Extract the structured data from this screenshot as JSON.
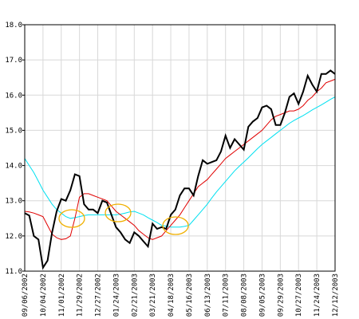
{
  "chart_data": {
    "type": "line",
    "categories": [
      "09/06/2002",
      null,
      null,
      null,
      "10/04/2002",
      null,
      null,
      null,
      "11/01/2002",
      null,
      null,
      null,
      "11/29/2002",
      null,
      null,
      null,
      "12/27/2002",
      null,
      null,
      null,
      "01/24/2003",
      null,
      null,
      null,
      "02/21/2003",
      null,
      null,
      null,
      "03/21/2003",
      null,
      null,
      null,
      "04/18/2003",
      null,
      null,
      null,
      "05/16/2003",
      null,
      null,
      null,
      "06/13/2003",
      null,
      null,
      null,
      "07/11/2003",
      null,
      null,
      null,
      "08/08/2003",
      null,
      null,
      null,
      "09/05/2003",
      null,
      null,
      null,
      "09/29/2003",
      null,
      null,
      null,
      "10/27/2003",
      null,
      null,
      null,
      "11/24/2003",
      null,
      null,
      null,
      "12/12/2003"
    ],
    "series": [
      {
        "color": "#00e0f0",
        "values": [
          14.2,
          14.0,
          13.8,
          13.55,
          13.3,
          13.1,
          12.9,
          12.75,
          12.65,
          12.55,
          12.5,
          12.52,
          12.55,
          12.58,
          12.6,
          12.6,
          12.6,
          12.6,
          12.6,
          12.6,
          12.6,
          12.62,
          12.65,
          12.68,
          12.7,
          12.65,
          12.6,
          12.52,
          12.45,
          12.38,
          12.3,
          12.28,
          12.25,
          12.25,
          12.25,
          12.27,
          12.3,
          12.45,
          12.6,
          12.75,
          12.9,
          13.08,
          13.25,
          13.4,
          13.55,
          13.7,
          13.85,
          13.98,
          14.1,
          14.22,
          14.35,
          14.48,
          14.6,
          14.7,
          14.8,
          14.9,
          15.0,
          15.1,
          15.2,
          15.28,
          15.35,
          15.42,
          15.5,
          15.58,
          15.65,
          15.72,
          15.8,
          15.88,
          15.95
        ]
      },
      {
        "color": "#e00000",
        "values": [
          12.7,
          12.68,
          12.65,
          12.6,
          12.55,
          12.3,
          12.05,
          11.95,
          11.9,
          11.92,
          12.0,
          12.5,
          13.1,
          13.2,
          13.2,
          13.15,
          13.1,
          13.05,
          13.0,
          12.85,
          12.7,
          12.6,
          12.5,
          12.4,
          12.3,
          12.15,
          12.05,
          11.95,
          11.9,
          11.95,
          12.0,
          12.15,
          12.3,
          12.45,
          12.6,
          12.8,
          13.0,
          13.2,
          13.4,
          13.5,
          13.6,
          13.75,
          13.9,
          14.05,
          14.2,
          14.3,
          14.4,
          14.5,
          14.6,
          14.7,
          14.8,
          14.9,
          15.0,
          15.15,
          15.3,
          15.4,
          15.45,
          15.5,
          15.55,
          15.55,
          15.6,
          15.7,
          15.85,
          15.95,
          16.1,
          16.2,
          16.35,
          16.4,
          16.45
        ]
      },
      {
        "color": "#000000",
        "values": [
          12.65,
          12.58,
          12.0,
          11.9,
          11.1,
          11.3,
          12.1,
          12.7,
          13.05,
          13.0,
          13.3,
          13.75,
          13.7,
          12.9,
          12.75,
          12.75,
          12.65,
          13.0,
          12.95,
          12.6,
          12.25,
          12.1,
          11.9,
          11.8,
          12.1,
          12.0,
          11.85,
          11.7,
          12.35,
          12.2,
          12.25,
          12.2,
          12.6,
          12.75,
          13.15,
          13.35,
          13.35,
          13.15,
          13.7,
          14.15,
          14.05,
          14.1,
          14.15,
          14.4,
          14.85,
          14.5,
          14.75,
          14.6,
          14.45,
          15.1,
          15.25,
          15.35,
          15.65,
          15.7,
          15.6,
          15.15,
          15.15,
          15.5,
          15.95,
          16.05,
          15.75,
          16.1,
          16.55,
          16.3,
          16.1,
          16.6,
          16.6,
          16.7,
          16.6
        ]
      }
    ],
    "ylim": [
      11,
      18
    ],
    "yticks": [
      {
        "value": 11,
        "label": "11.0"
      },
      {
        "value": 12,
        "label": "12.0"
      },
      {
        "value": 13,
        "label": "13.0"
      },
      {
        "value": 14,
        "label": "14.0"
      },
      {
        "value": 15,
        "label": "15.0"
      },
      {
        "value": 16,
        "label": "16.0"
      },
      {
        "value": 17,
        "label": "17.0"
      },
      {
        "value": 18,
        "label": "18.0"
      }
    ],
    "grid": true
  }
}
